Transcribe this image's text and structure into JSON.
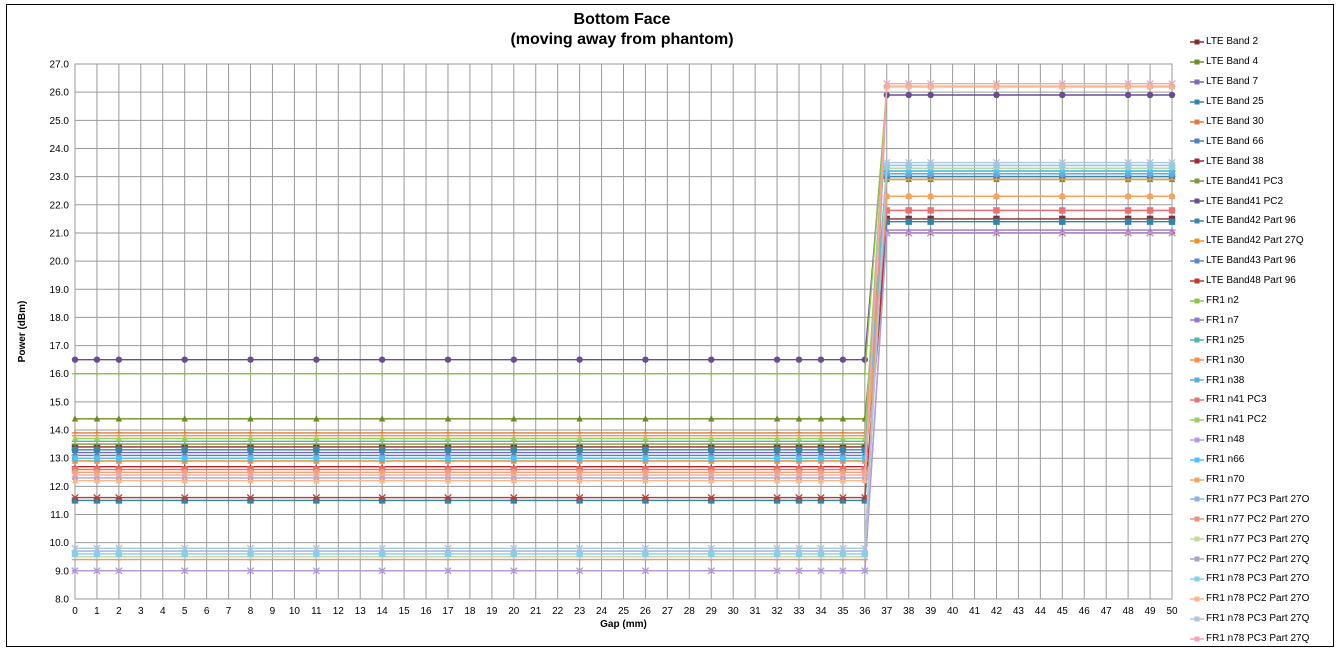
{
  "chart_data": {
    "type": "line",
    "title": "Bottom Face",
    "subtitle": "(moving away from phantom)",
    "xlabel": "Gap (mm)",
    "ylabel": "Power (dBm)",
    "ylim": [
      8.0,
      27.0
    ],
    "yticks": [
      "8.0",
      "9.0",
      "10.0",
      "11.0",
      "12.0",
      "13.0",
      "14.0",
      "15.0",
      "16.0",
      "17.0",
      "18.0",
      "19.0",
      "20.0",
      "21.0",
      "22.0",
      "23.0",
      "24.0",
      "25.0",
      "26.0",
      "27.0"
    ],
    "xticks": [
      0,
      1,
      2,
      3,
      4,
      5,
      6,
      7,
      8,
      9,
      10,
      11,
      12,
      13,
      14,
      15,
      16,
      17,
      18,
      19,
      20,
      21,
      22,
      23,
      24,
      25,
      26,
      27,
      28,
      29,
      30,
      31,
      32,
      33,
      34,
      35,
      36,
      37,
      38,
      39,
      40,
      41,
      42,
      43,
      44,
      45,
      46,
      47,
      48,
      49,
      50
    ],
    "x": [
      0,
      1,
      2,
      5,
      8,
      11,
      14,
      17,
      20,
      23,
      26,
      29,
      32,
      33,
      34,
      35,
      36,
      37,
      38,
      39,
      42,
      45,
      48,
      49,
      50
    ],
    "grid": true,
    "legend_position": "right",
    "series": [
      {
        "name": "LTE Band 2",
        "color": "#8B2A2A",
        "marker": "square",
        "before": 13.4,
        "after": 21.5
      },
      {
        "name": "LTE Band 4",
        "color": "#6B8E23",
        "marker": "triangle",
        "before": 14.4,
        "after": 22.9
      },
      {
        "name": "LTE Band 7",
        "color": "#7B68B0",
        "marker": "x",
        "before": 13.2,
        "after": 23.1
      },
      {
        "name": "LTE Band 25",
        "color": "#2E86AB",
        "marker": "square",
        "before": 11.5,
        "after": 21.4
      },
      {
        "name": "LTE Band 30",
        "color": "#E07B39",
        "marker": "plus",
        "before": 13.9,
        "after": 21.8
      },
      {
        "name": "LTE Band 66",
        "color": "#4F81BD",
        "marker": "plus",
        "before": 13.1,
        "after": 23.0
      },
      {
        "name": "LTE Band 38",
        "color": "#A0282D",
        "marker": "dash",
        "before": 12.7,
        "after": 21.0
      },
      {
        "name": "LTE Band41 PC3",
        "color": "#7D9B3A",
        "marker": "dash",
        "before": 13.5,
        "after": 23.2
      },
      {
        "name": "LTE Band41 PC2",
        "color": "#6A4C93",
        "marker": "circle",
        "before": 16.5,
        "after": 25.9
      },
      {
        "name": "LTE Band42 Part 96",
        "color": "#3A86A8",
        "marker": "square",
        "before": 13.3,
        "after": 23.0
      },
      {
        "name": "LTE Band42 Part 27Q",
        "color": "#F28E2B",
        "marker": "triangle",
        "before": 12.9,
        "after": 22.3
      },
      {
        "name": "LTE Band43 Part 96",
        "color": "#5B8BC9",
        "marker": "x",
        "before": 13.0,
        "after": 23.1
      },
      {
        "name": "LTE Band48 Part 96",
        "color": "#C0392B",
        "marker": "x",
        "before": 11.6,
        "after": 21.0
      },
      {
        "name": "FR1 n2",
        "color": "#8BC34A",
        "marker": "dash",
        "before": 16.0,
        "after": 26.2
      },
      {
        "name": "FR1 n7",
        "color": "#9575CD",
        "marker": "dash",
        "before": 9.0,
        "after": 21.1
      },
      {
        "name": "FR1 n25",
        "color": "#4DB6AC",
        "marker": "dash",
        "before": 13.6,
        "after": 23.3
      },
      {
        "name": "FR1 n30",
        "color": "#FF8C42",
        "marker": "dash",
        "before": 13.8,
        "after": 22.9
      },
      {
        "name": "FR1 n38",
        "color": "#5DADE2",
        "marker": "circle",
        "before": 13.0,
        "after": 23.1
      },
      {
        "name": "FR1 n41 PC3",
        "color": "#E57373",
        "marker": "square",
        "before": 12.6,
        "after": 21.8
      },
      {
        "name": "FR1 n41 PC2",
        "color": "#9CCC65",
        "marker": "triangle",
        "before": 13.7,
        "after": 26.2
      },
      {
        "name": "FR1 n48",
        "color": "#B39DDB",
        "marker": "x",
        "before": 9.0,
        "after": 21.0
      },
      {
        "name": "FR1 n66",
        "color": "#4FC3F7",
        "marker": "x",
        "before": 13.0,
        "after": 23.2
      },
      {
        "name": "FR1 n70",
        "color": "#F4A460",
        "marker": "circle",
        "before": 12.5,
        "after": 22.3
      },
      {
        "name": "FR1 n77 PC3 Part 27O",
        "color": "#8DB3E2",
        "marker": "plus",
        "before": 9.7,
        "after": 23.4
      },
      {
        "name": "FR1 n77 PC2 Part 27O",
        "color": "#E9967A",
        "marker": "dash",
        "before": 9.4,
        "after": 26.2
      },
      {
        "name": "FR1 n77 PC3 Part 27Q",
        "color": "#C5D89A",
        "marker": "dash",
        "before": 9.5,
        "after": 23.3
      },
      {
        "name": "FR1 n77 PC2 Part 27Q",
        "color": "#A9A2C8",
        "marker": "circle",
        "before": 12.3,
        "after": 26.2
      },
      {
        "name": "FR1 n78 PC3 Part 27O",
        "color": "#87CEEB",
        "marker": "square",
        "before": 9.6,
        "after": 23.4
      },
      {
        "name": "FR1 n78 PC2 Part 27O",
        "color": "#F8B88B",
        "marker": "triangle",
        "before": 12.2,
        "after": 26.2
      },
      {
        "name": "FR1 n78 PC3 Part 27Q",
        "color": "#B0C4DE",
        "marker": "x",
        "before": 9.8,
        "after": 23.5
      },
      {
        "name": "FR1 n78 PC3 Part 27Q",
        "color": "#F4A6B0",
        "marker": "x",
        "before": 12.4,
        "after": 26.3
      }
    ]
  }
}
